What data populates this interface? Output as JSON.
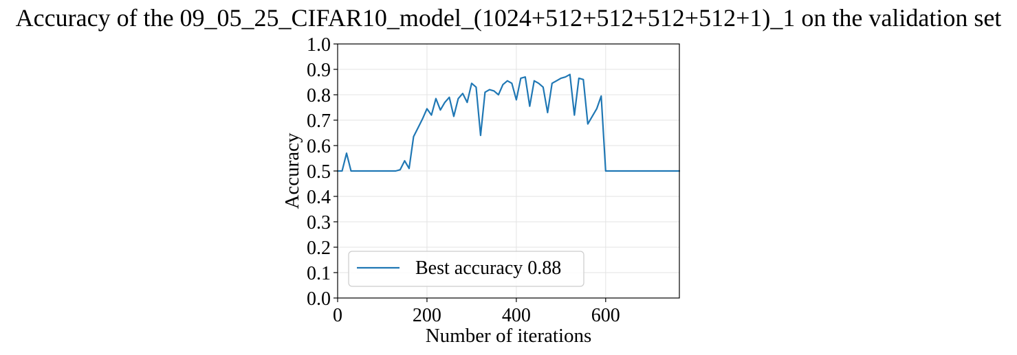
{
  "chart_data": {
    "type": "line",
    "title": "Accuracy of the 09_05_25_CIFAR10_model_(1024+512+512+512+512+1)_1 on the validation set",
    "xlabel": "Number of iterations",
    "ylabel": "Accuracy",
    "xlim": [
      0,
      765
    ],
    "ylim": [
      0.0,
      1.0
    ],
    "xticks": [
      0,
      200,
      400,
      600
    ],
    "yticks": [
      0.0,
      0.1,
      0.2,
      0.3,
      0.4,
      0.5,
      0.6,
      0.7,
      0.8,
      0.9,
      1.0
    ],
    "grid": true,
    "legend_position": "lower-left",
    "series": [
      {
        "name": "Best accuracy 0.88",
        "color": "#1f77b4",
        "x": [
          0,
          10,
          20,
          30,
          40,
          50,
          60,
          70,
          80,
          90,
          100,
          110,
          120,
          130,
          140,
          150,
          160,
          170,
          180,
          190,
          200,
          210,
          220,
          230,
          240,
          250,
          260,
          270,
          280,
          290,
          300,
          310,
          320,
          330,
          340,
          350,
          360,
          370,
          380,
          390,
          400,
          410,
          420,
          430,
          440,
          450,
          460,
          470,
          480,
          490,
          500,
          510,
          520,
          530,
          540,
          550,
          560,
          570,
          580,
          590,
          600,
          610,
          620,
          630,
          640,
          650,
          660,
          670,
          680,
          690,
          700,
          710,
          720,
          730,
          740,
          750,
          765
        ],
        "y": [
          0.5,
          0.5,
          0.57,
          0.5,
          0.5,
          0.5,
          0.5,
          0.5,
          0.5,
          0.5,
          0.5,
          0.5,
          0.5,
          0.5,
          0.505,
          0.54,
          0.51,
          0.635,
          0.67,
          0.705,
          0.745,
          0.72,
          0.785,
          0.74,
          0.77,
          0.79,
          0.715,
          0.785,
          0.805,
          0.77,
          0.845,
          0.83,
          0.64,
          0.81,
          0.82,
          0.815,
          0.8,
          0.84,
          0.855,
          0.845,
          0.78,
          0.865,
          0.87,
          0.755,
          0.855,
          0.845,
          0.83,
          0.73,
          0.845,
          0.855,
          0.865,
          0.87,
          0.88,
          0.72,
          0.865,
          0.86,
          0.685,
          0.715,
          0.745,
          0.795,
          0.5,
          0.5,
          0.5,
          0.5,
          0.5,
          0.5,
          0.5,
          0.5,
          0.5,
          0.5,
          0.5,
          0.5,
          0.5,
          0.5,
          0.5,
          0.5,
          0.5
        ]
      }
    ]
  }
}
